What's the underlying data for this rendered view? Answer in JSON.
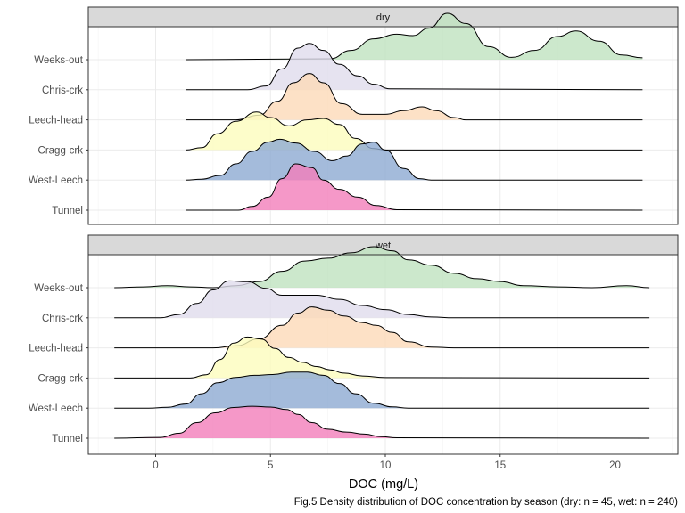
{
  "chart_data": {
    "type": "ridgeline density",
    "xlabel": "DOC (mg/L)",
    "caption": "Fig.5 Density distribution of DOC concentration by season (dry: n = 45, wet: n = 240)",
    "x_ticks": [
      0,
      5,
      10,
      15,
      20
    ],
    "xlim": [
      -2.8,
      22.5
    ],
    "categories": [
      "Weeks-out",
      "Chris-crk",
      "Leech-head",
      "Cragg-crk",
      "West-Leech",
      "Tunnel"
    ],
    "colors": {
      "Weeks-out": "#bfe2bf",
      "Chris-crk": "#e0dcec",
      "Leech-head": "#fcd9b8",
      "Cragg-crk": "#fcfcbd",
      "West-Leech": "#8daad2",
      "Tunnel": "#f27eba"
    },
    "panels": [
      {
        "strip": "dry",
        "x_range": [
          1.3,
          21.2
        ],
        "series": [
          {
            "name": "Weeks-out",
            "points": [
              [
                1.3,
                0
              ],
              [
                7.6,
                0.02
              ],
              [
                8.5,
                0.2
              ],
              [
                9.5,
                0.45
              ],
              [
                10.5,
                0.55
              ],
              [
                11.2,
                0.52
              ],
              [
                11.9,
                0.68
              ],
              [
                12.7,
                1.0
              ],
              [
                13.5,
                0.78
              ],
              [
                14.5,
                0.28
              ],
              [
                15.5,
                0.05
              ],
              [
                16.5,
                0.2
              ],
              [
                17.5,
                0.5
              ],
              [
                18.3,
                0.62
              ],
              [
                19.3,
                0.4
              ],
              [
                20.3,
                0.1
              ],
              [
                21.2,
                0.04
              ]
            ]
          },
          {
            "name": "Chris-crk",
            "points": [
              [
                1.3,
                0
              ],
              [
                4.0,
                0
              ],
              [
                4.8,
                0.08
              ],
              [
                5.5,
                0.45
              ],
              [
                6.2,
                0.9
              ],
              [
                6.7,
                1.0
              ],
              [
                7.3,
                0.85
              ],
              [
                8.0,
                0.55
              ],
              [
                8.8,
                0.3
              ],
              [
                9.5,
                0.12
              ],
              [
                10.2,
                0.02
              ],
              [
                21.2,
                0
              ]
            ]
          },
          {
            "name": "Leech-head",
            "points": [
              [
                1.3,
                0
              ],
              [
                3.5,
                0
              ],
              [
                4.5,
                0.1
              ],
              [
                5.3,
                0.4
              ],
              [
                6.0,
                0.8
              ],
              [
                6.7,
                1.0
              ],
              [
                7.3,
                0.8
              ],
              [
                8.1,
                0.35
              ],
              [
                9.0,
                0.12
              ],
              [
                10.0,
                0.12
              ],
              [
                10.8,
                0.2
              ],
              [
                11.6,
                0.28
              ],
              [
                12.2,
                0.2
              ],
              [
                13.0,
                0.05
              ],
              [
                13.5,
                0
              ],
              [
                21.2,
                0
              ]
            ]
          },
          {
            "name": "Cragg-crk",
            "points": [
              [
                1.3,
                0
              ],
              [
                2.0,
                0.05
              ],
              [
                2.7,
                0.35
              ],
              [
                3.5,
                0.62
              ],
              [
                4.4,
                0.82
              ],
              [
                5.0,
                0.7
              ],
              [
                5.8,
                0.52
              ],
              [
                6.6,
                0.65
              ],
              [
                7.3,
                0.68
              ],
              [
                8.0,
                0.55
              ],
              [
                8.7,
                0.25
              ],
              [
                9.5,
                0.03
              ],
              [
                10.0,
                0
              ],
              [
                21.2,
                0
              ]
            ]
          },
          {
            "name": "West-Leech",
            "points": [
              [
                1.3,
                0
              ],
              [
                2.0,
                0.02
              ],
              [
                2.8,
                0.1
              ],
              [
                3.5,
                0.35
              ],
              [
                4.2,
                0.62
              ],
              [
                4.9,
                0.82
              ],
              [
                5.4,
                0.88
              ],
              [
                6.1,
                0.8
              ],
              [
                6.9,
                0.62
              ],
              [
                7.7,
                0.42
              ],
              [
                8.3,
                0.52
              ],
              [
                9.0,
                0.78
              ],
              [
                9.5,
                0.82
              ],
              [
                10.0,
                0.65
              ],
              [
                10.8,
                0.25
              ],
              [
                11.5,
                0.03
              ],
              [
                12.0,
                0
              ],
              [
                21.2,
                0
              ]
            ]
          },
          {
            "name": "Tunnel",
            "points": [
              [
                1.3,
                0
              ],
              [
                3.6,
                0
              ],
              [
                4.2,
                0.08
              ],
              [
                4.9,
                0.28
              ],
              [
                5.5,
                0.68
              ],
              [
                6.1,
                1.0
              ],
              [
                6.8,
                0.92
              ],
              [
                7.3,
                0.65
              ],
              [
                8.0,
                0.45
              ],
              [
                8.8,
                0.28
              ],
              [
                9.6,
                0.1
              ],
              [
                10.5,
                0.01
              ],
              [
                21.2,
                0
              ]
            ]
          }
        ]
      },
      {
        "strip": "wet",
        "x_range": [
          -1.8,
          21.5
        ],
        "series": [
          {
            "name": "Weeks-out",
            "points": [
              [
                -1.8,
                0
              ],
              [
                -0.5,
                0.02
              ],
              [
                0.5,
                0.05
              ],
              [
                1.5,
                0.02
              ],
              [
                2.5,
                0
              ],
              [
                3.5,
                0.05
              ],
              [
                4.5,
                0.15
              ],
              [
                5.5,
                0.4
              ],
              [
                6.5,
                0.65
              ],
              [
                7.5,
                0.72
              ],
              [
                8.5,
                0.85
              ],
              [
                9.5,
                1.0
              ],
              [
                10.3,
                0.9
              ],
              [
                11.0,
                0.68
              ],
              [
                12.0,
                0.55
              ],
              [
                13.0,
                0.35
              ],
              [
                14.0,
                0.22
              ],
              [
                15.0,
                0.15
              ],
              [
                16.0,
                0.05
              ],
              [
                17.5,
                0.02
              ],
              [
                19.0,
                0
              ],
              [
                20.5,
                0.05
              ],
              [
                21.5,
                0
              ]
            ]
          },
          {
            "name": "Chris-crk",
            "points": [
              [
                -1.8,
                0
              ],
              [
                0.2,
                0
              ],
              [
                1.0,
                0.08
              ],
              [
                1.8,
                0.35
              ],
              [
                2.5,
                0.68
              ],
              [
                3.2,
                0.9
              ],
              [
                4.0,
                0.88
              ],
              [
                4.8,
                0.72
              ],
              [
                5.5,
                0.55
              ],
              [
                6.3,
                0.55
              ],
              [
                7.0,
                0.55
              ],
              [
                8.0,
                0.45
              ],
              [
                9.0,
                0.3
              ],
              [
                10.0,
                0.2
              ],
              [
                11.0,
                0.08
              ],
              [
                12.0,
                0.02
              ],
              [
                13.0,
                0
              ],
              [
                21.5,
                0
              ]
            ]
          },
          {
            "name": "Leech-head",
            "points": [
              [
                -1.8,
                0
              ],
              [
                2.5,
                0
              ],
              [
                3.5,
                0.05
              ],
              [
                4.5,
                0.22
              ],
              [
                5.5,
                0.55
              ],
              [
                6.2,
                0.85
              ],
              [
                6.8,
                1.0
              ],
              [
                7.5,
                0.92
              ],
              [
                8.2,
                0.78
              ],
              [
                9.0,
                0.62
              ],
              [
                9.6,
                0.55
              ],
              [
                10.3,
                0.38
              ],
              [
                11.0,
                0.15
              ],
              [
                12.0,
                0.02
              ],
              [
                13.0,
                0
              ],
              [
                21.5,
                0
              ]
            ]
          },
          {
            "name": "Cragg-crk",
            "points": [
              [
                -1.8,
                0
              ],
              [
                1.5,
                0
              ],
              [
                2.2,
                0.08
              ],
              [
                2.8,
                0.45
              ],
              [
                3.4,
                0.85
              ],
              [
                4.0,
                1.0
              ],
              [
                4.6,
                0.95
              ],
              [
                5.2,
                0.72
              ],
              [
                5.8,
                0.5
              ],
              [
                6.4,
                0.38
              ],
              [
                7.0,
                0.28
              ],
              [
                7.6,
                0.2
              ],
              [
                8.2,
                0.12
              ],
              [
                9.0,
                0.05
              ],
              [
                10.0,
                0.01
              ],
              [
                21.5,
                0
              ]
            ]
          },
          {
            "name": "West-Leech",
            "points": [
              [
                -1.8,
                0
              ],
              [
                -0.3,
                0
              ],
              [
                0.5,
                0.02
              ],
              [
                1.3,
                0.1
              ],
              [
                2.0,
                0.35
              ],
              [
                2.7,
                0.62
              ],
              [
                3.5,
                0.75
              ],
              [
                4.3,
                0.8
              ],
              [
                5.1,
                0.82
              ],
              [
                5.9,
                0.88
              ],
              [
                6.6,
                0.88
              ],
              [
                7.3,
                0.8
              ],
              [
                8.0,
                0.6
              ],
              [
                8.7,
                0.35
              ],
              [
                9.5,
                0.12
              ],
              [
                10.3,
                0.03
              ],
              [
                11.0,
                0
              ],
              [
                21.5,
                0
              ]
            ]
          },
          {
            "name": "Tunnel",
            "points": [
              [
                -1.8,
                0
              ],
              [
                0.2,
                0.02
              ],
              [
                1.0,
                0.12
              ],
              [
                1.8,
                0.38
              ],
              [
                2.6,
                0.62
              ],
              [
                3.4,
                0.75
              ],
              [
                4.2,
                0.78
              ],
              [
                5.0,
                0.76
              ],
              [
                5.7,
                0.7
              ],
              [
                6.2,
                0.58
              ],
              [
                6.8,
                0.38
              ],
              [
                7.5,
                0.22
              ],
              [
                8.3,
                0.15
              ],
              [
                9.1,
                0.1
              ],
              [
                9.8,
                0.04
              ],
              [
                10.5,
                0.01
              ],
              [
                21.5,
                0
              ]
            ]
          }
        ]
      }
    ]
  }
}
